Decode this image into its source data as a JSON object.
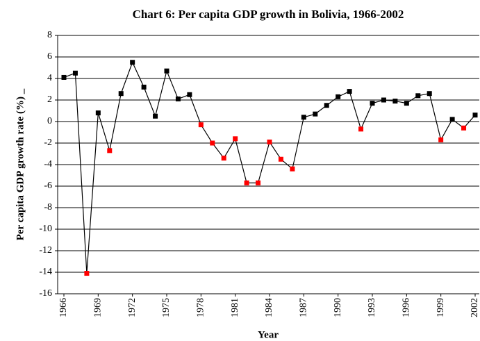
{
  "chart_data": {
    "type": "line",
    "title": "Chart 6: Per capita GDP growth in Bolivia, 1966-2002",
    "x_label": "Year",
    "y_label": "Per capita GDP growth rate (%) _",
    "x": [
      1966,
      1967,
      1968,
      1969,
      1970,
      1971,
      1972,
      1973,
      1974,
      1975,
      1976,
      1977,
      1978,
      1979,
      1980,
      1981,
      1982,
      1983,
      1984,
      1985,
      1986,
      1987,
      1988,
      1989,
      1990,
      1991,
      1992,
      1993,
      1994,
      1995,
      1996,
      1997,
      1998,
      1999,
      2000,
      2001,
      2002
    ],
    "values": [
      4.1,
      4.5,
      -14.1,
      0.8,
      -2.7,
      2.6,
      5.5,
      3.2,
      0.5,
      4.7,
      2.1,
      2.5,
      -0.3,
      -2.0,
      -3.4,
      -1.6,
      -5.7,
      -5.7,
      -1.9,
      -3.5,
      -4.4,
      0.4,
      0.7,
      1.5,
      2.3,
      2.8,
      -0.7,
      1.7,
      2.0,
      1.9,
      1.7,
      2.4,
      2.6,
      -1.7,
      0.2,
      -0.6,
      0.6
    ],
    "xlim": [
      1966,
      2002
    ],
    "xticks": [
      1966,
      1969,
      1972,
      1975,
      1978,
      1981,
      1984,
      1987,
      1990,
      1993,
      1996,
      1999,
      2002
    ],
    "ylim": [
      -16,
      8
    ],
    "yticks": [
      -16,
      -14,
      -12,
      -10,
      -8,
      -6,
      -4,
      -2,
      0,
      2,
      4,
      6,
      8
    ],
    "grid": true,
    "line_color": "#000000",
    "positive_color": "#000000",
    "negative_color": "#ff0000"
  }
}
